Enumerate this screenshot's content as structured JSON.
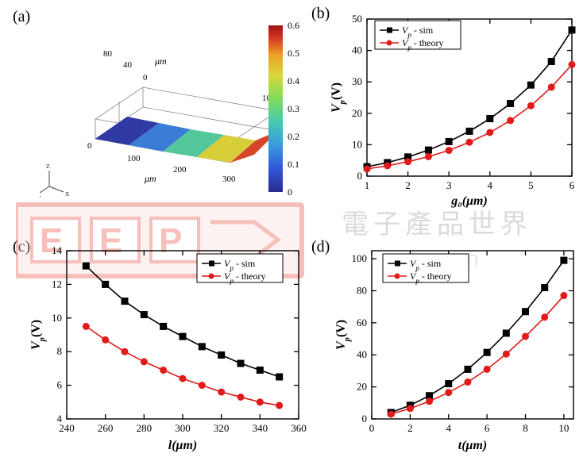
{
  "labels": {
    "a": "(a)",
    "b": "(b)",
    "c": "(c)",
    "d": "(d)"
  },
  "legend": {
    "sim": "V_p - sim",
    "theory": "V_p - theory"
  },
  "colors": {
    "sim_line": "#000000",
    "sim_marker_fill": "#000000",
    "theory_line": "#e11b1b",
    "theory_marker_fill": "#e11b1b",
    "axis": "#000000",
    "bg": "#ffffff",
    "tick": "#000000",
    "watermark_gray": "#cccccc",
    "watermark_red_stroke": "#e74a3a",
    "watermark_red_fill": "#f8dcd8"
  },
  "panel_a_3d": {
    "type": "3d-surface-colormap",
    "axis_unit": "μm",
    "x_ticks": [
      0,
      100,
      200,
      300
    ],
    "y_ticks": [
      0,
      40,
      80
    ],
    "z_ticks": [
      0,
      10
    ],
    "axes_letters": {
      "x": "x",
      "y": "y",
      "z": "z"
    },
    "colorbar": {
      "ticks": [
        0,
        0.1,
        0.2,
        0.3,
        0.4,
        0.5,
        0.6
      ],
      "colors": [
        "#2a2a8f",
        "#3356d6",
        "#3a9be0",
        "#45c9b0",
        "#7fdc5a",
        "#d7d83a",
        "#eca326",
        "#d63a22",
        "#a01313"
      ],
      "tick_fontsize": 12
    }
  },
  "chart_b": {
    "type": "line",
    "xlabel": "g₀(μm)",
    "ylabel": "V_p(V)",
    "xlim": [
      1,
      6
    ],
    "ylim": [
      0,
      50
    ],
    "xticks": [
      1,
      2,
      3,
      4,
      5,
      6
    ],
    "yticks": [
      0,
      10,
      20,
      30,
      40,
      50
    ],
    "label_fontsize": 16,
    "tick_fontsize": 13,
    "line_width": 1.6,
    "marker_size": 4,
    "sim": {
      "x": [
        1,
        1.5,
        2,
        2.5,
        3,
        3.5,
        4,
        4.5,
        5,
        5.5,
        6
      ],
      "y": [
        3.0,
        4.3,
        6.1,
        8.3,
        11.0,
        14.3,
        18.3,
        23.1,
        29.0,
        36.5,
        46.5
      ],
      "marker": "square"
    },
    "theory": {
      "x": [
        1,
        1.5,
        2,
        2.5,
        3,
        3.5,
        4,
        4.5,
        5,
        5.5,
        6
      ],
      "y": [
        2.3,
        3.3,
        4.6,
        6.2,
        8.2,
        10.8,
        13.9,
        17.7,
        22.4,
        28.3,
        35.5
      ],
      "marker": "circle"
    }
  },
  "chart_c": {
    "type": "line",
    "xlabel": "l(μm)",
    "ylabel": "V_p(V)",
    "xlim": [
      240,
      360
    ],
    "ylim": [
      4,
      14
    ],
    "xticks": [
      240,
      260,
      280,
      300,
      320,
      340,
      360
    ],
    "yticks": [
      4,
      6,
      8,
      10,
      12,
      14
    ],
    "label_fontsize": 16,
    "tick_fontsize": 13,
    "line_width": 1.6,
    "marker_size": 4,
    "sim": {
      "x": [
        250,
        260,
        270,
        280,
        290,
        300,
        310,
        320,
        330,
        340,
        350
      ],
      "y": [
        13.1,
        12.0,
        11.0,
        10.2,
        9.5,
        8.9,
        8.3,
        7.8,
        7.3,
        6.9,
        6.5
      ],
      "marker": "square"
    },
    "theory": {
      "x": [
        250,
        260,
        270,
        280,
        290,
        300,
        310,
        320,
        330,
        340,
        350
      ],
      "y": [
        9.5,
        8.7,
        8.0,
        7.4,
        6.9,
        6.4,
        6.0,
        5.6,
        5.3,
        5.0,
        4.8
      ],
      "marker": "circle"
    }
  },
  "chart_d": {
    "type": "line",
    "xlabel": "t(μm)",
    "ylabel": "V_p(V)",
    "xlim": [
      0,
      10.5
    ],
    "ylim": [
      0,
      105
    ],
    "xticks": [
      0,
      2,
      4,
      6,
      8,
      10
    ],
    "yticks": [
      0,
      20,
      40,
      60,
      80,
      100
    ],
    "label_fontsize": 16,
    "tick_fontsize": 13,
    "line_width": 1.6,
    "marker_size": 4,
    "sim": {
      "x": [
        1,
        2,
        3,
        4,
        5,
        6,
        7,
        8,
        9,
        10
      ],
      "y": [
        4.0,
        8.5,
        14.5,
        22.0,
        31.0,
        41.5,
        53.5,
        67.0,
        82.0,
        99.0
      ],
      "marker": "square"
    },
    "theory": {
      "x": [
        1,
        2,
        3,
        4,
        5,
        6,
        7,
        8,
        9,
        10
      ],
      "y": [
        3.0,
        6.5,
        11.0,
        16.5,
        23.0,
        31.0,
        40.5,
        51.5,
        63.5,
        77.0
      ],
      "marker": "circle"
    }
  }
}
